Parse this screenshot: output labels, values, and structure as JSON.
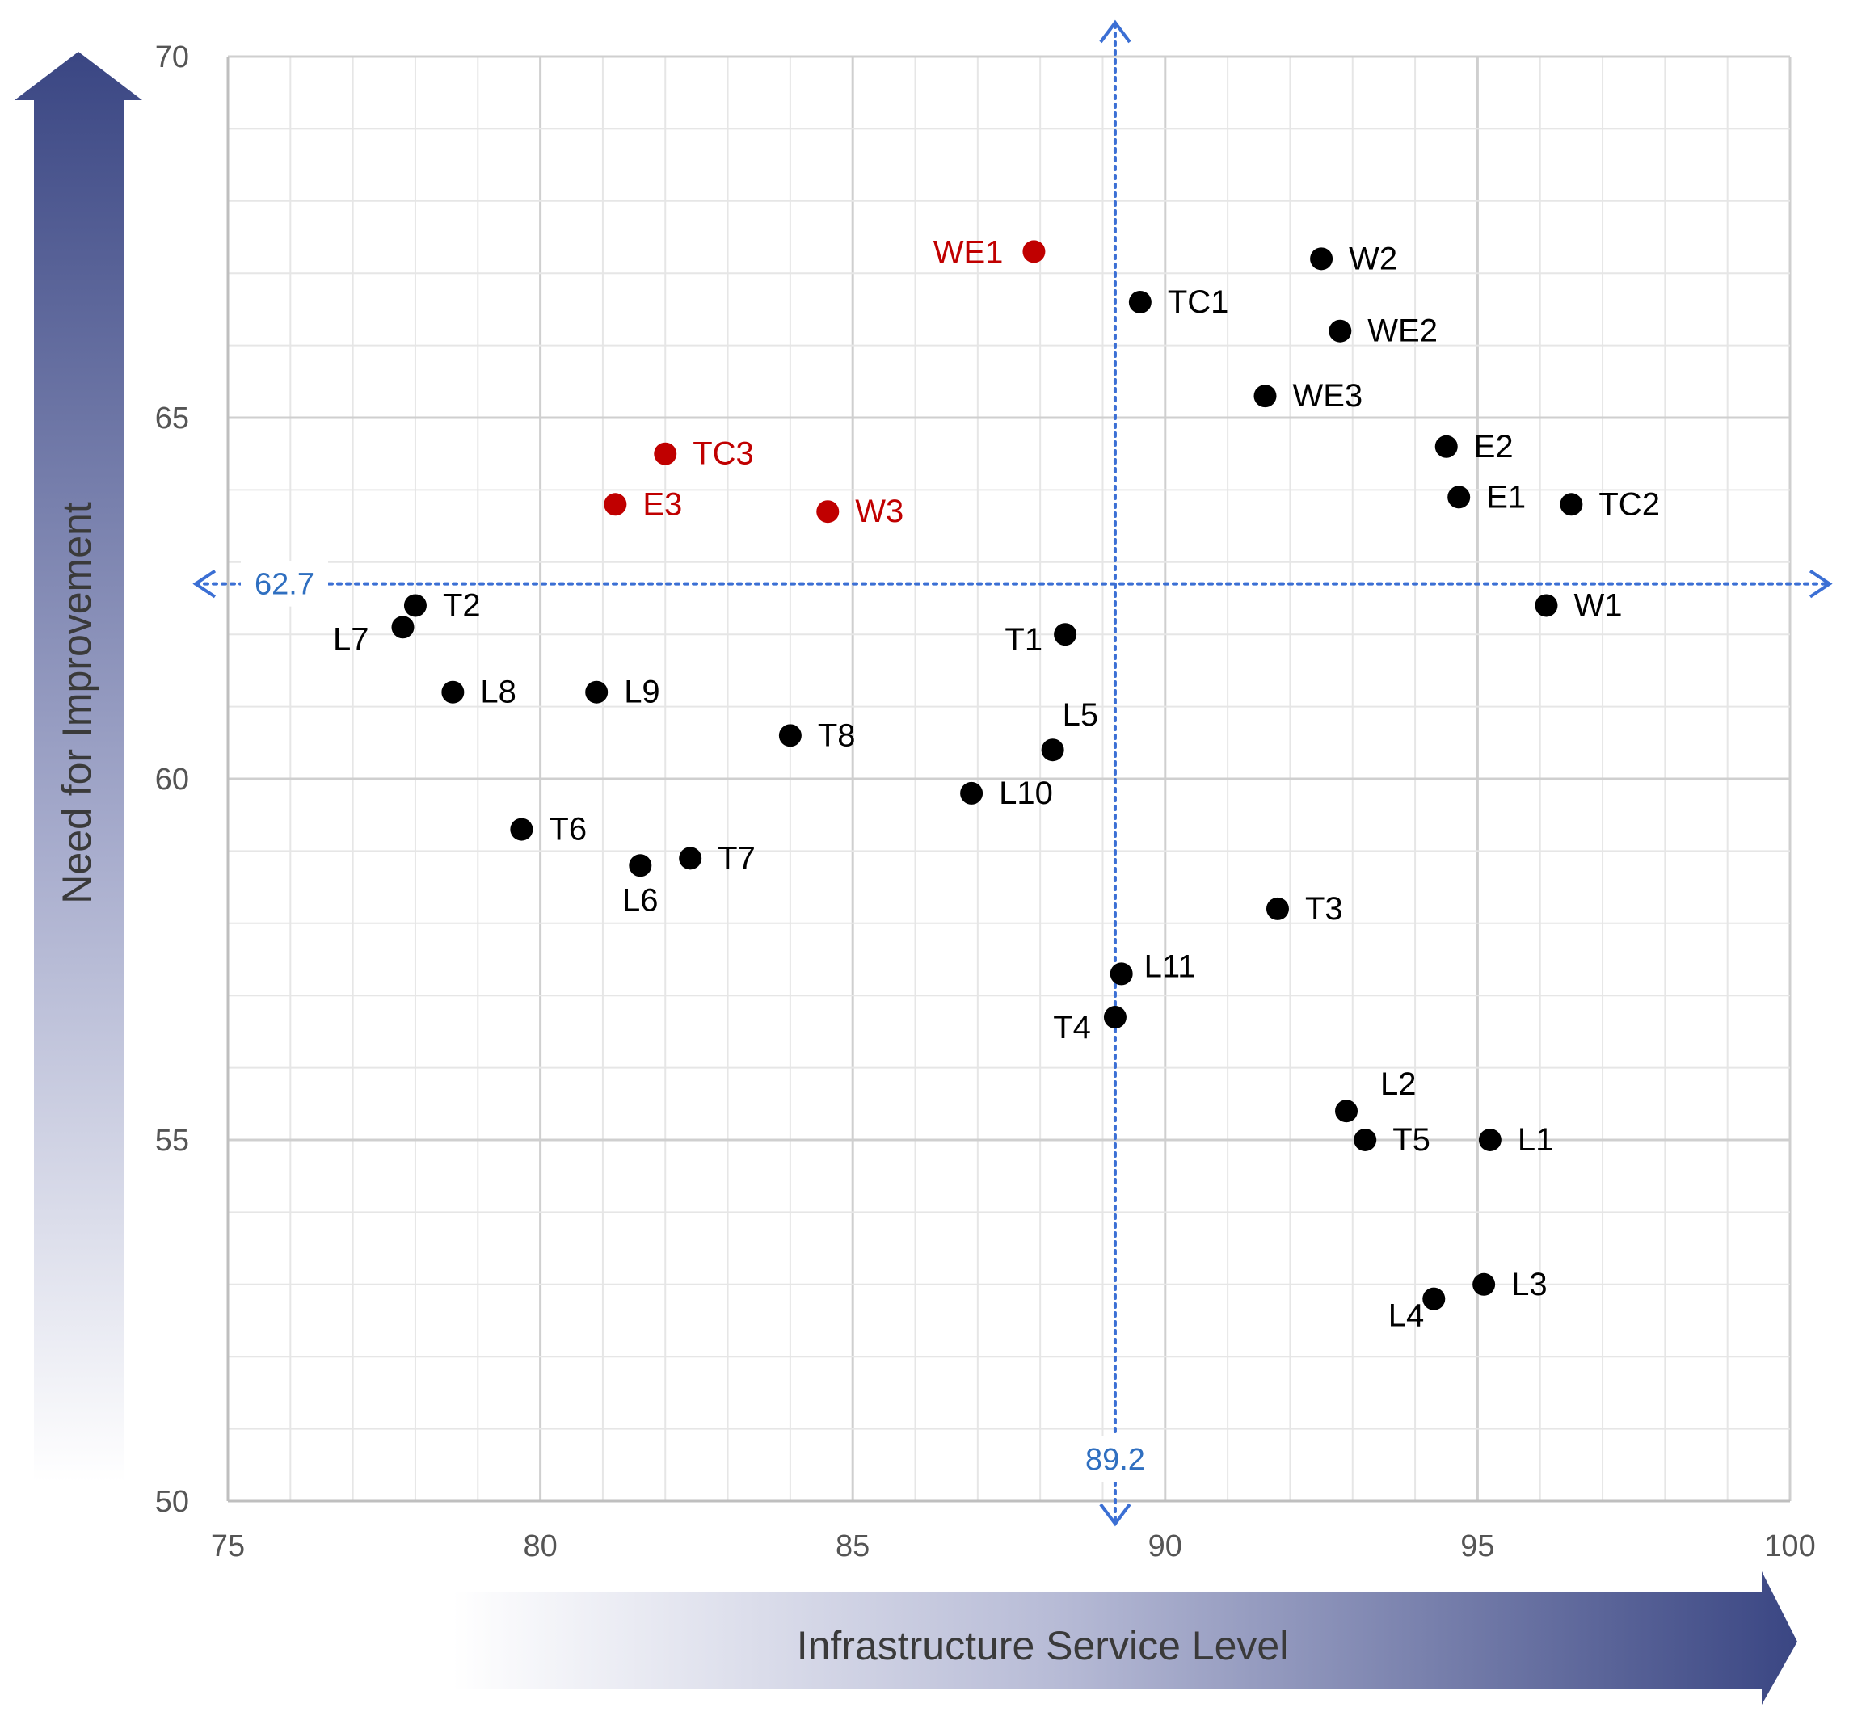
{
  "chart_data": {
    "type": "scatter",
    "title": "",
    "xlabel": "Infrastructure Service Level",
    "ylabel": "Need for  Improvement",
    "xlim": [
      75,
      100
    ],
    "ylim": [
      50,
      70
    ],
    "xticks": [
      "75",
      "80",
      "85",
      "90",
      "95",
      "100"
    ],
    "yticks": [
      "50",
      "55",
      "60",
      "65",
      "70"
    ],
    "grid": true,
    "reference_lines": {
      "x_mean": 89.2,
      "x_mean_label": "89.2",
      "y_mean": 62.7,
      "y_mean_label": "62.7"
    },
    "colors": {
      "normal": "#000000",
      "highlight": "#c00000",
      "reference": "#3b6fd4",
      "reference_label": "#2f6fc0",
      "arrow_dark": "#3a4683",
      "grid": "#d9d9d9",
      "axis": "#bfbfbf"
    },
    "points": [
      {
        "label": "WE1",
        "x": 87.9,
        "y": 67.3,
        "highlight": true
      },
      {
        "label": "TC1",
        "x": 89.6,
        "y": 66.6,
        "highlight": false
      },
      {
        "label": "W2",
        "x": 92.5,
        "y": 67.2,
        "highlight": false
      },
      {
        "label": "WE2",
        "x": 92.8,
        "y": 66.2,
        "highlight": false
      },
      {
        "label": "WE3",
        "x": 91.6,
        "y": 65.3,
        "highlight": false
      },
      {
        "label": "E2",
        "x": 94.5,
        "y": 64.6,
        "highlight": false
      },
      {
        "label": "E1",
        "x": 94.7,
        "y": 63.9,
        "highlight": false
      },
      {
        "label": "TC2",
        "x": 96.5,
        "y": 63.8,
        "highlight": false
      },
      {
        "label": "W1",
        "x": 96.1,
        "y": 62.4,
        "highlight": false
      },
      {
        "label": "TC3",
        "x": 82.0,
        "y": 64.5,
        "highlight": true
      },
      {
        "label": "E3",
        "x": 81.2,
        "y": 63.8,
        "highlight": true
      },
      {
        "label": "W3",
        "x": 84.6,
        "y": 63.7,
        "highlight": true
      },
      {
        "label": "T2",
        "x": 78.0,
        "y": 62.4,
        "highlight": false
      },
      {
        "label": "L7",
        "x": 77.8,
        "y": 62.1,
        "highlight": false
      },
      {
        "label": "T1",
        "x": 88.4,
        "y": 62.0,
        "highlight": false
      },
      {
        "label": "L8",
        "x": 78.6,
        "y": 61.2,
        "highlight": false
      },
      {
        "label": "L9",
        "x": 80.9,
        "y": 61.2,
        "highlight": false
      },
      {
        "label": "T8",
        "x": 84.0,
        "y": 60.6,
        "highlight": false
      },
      {
        "label": "L5",
        "x": 88.2,
        "y": 60.4,
        "highlight": false
      },
      {
        "label": "L10",
        "x": 86.9,
        "y": 59.8,
        "highlight": false
      },
      {
        "label": "T6",
        "x": 79.7,
        "y": 59.3,
        "highlight": false
      },
      {
        "label": "T7",
        "x": 82.4,
        "y": 58.9,
        "highlight": false
      },
      {
        "label": "L6",
        "x": 81.6,
        "y": 58.8,
        "highlight": false
      },
      {
        "label": "T3",
        "x": 91.8,
        "y": 58.2,
        "highlight": false
      },
      {
        "label": "L11",
        "x": 89.3,
        "y": 57.3,
        "highlight": false
      },
      {
        "label": "T4",
        "x": 89.2,
        "y": 56.7,
        "highlight": false
      },
      {
        "label": "L2",
        "x": 92.9,
        "y": 55.4,
        "highlight": false
      },
      {
        "label": "T5",
        "x": 93.2,
        "y": 55.0,
        "highlight": false
      },
      {
        "label": "L1",
        "x": 95.2,
        "y": 55.0,
        "highlight": false
      },
      {
        "label": "L3",
        "x": 95.1,
        "y": 53.0,
        "highlight": false
      },
      {
        "label": "L4",
        "x": 94.3,
        "y": 52.8,
        "highlight": false
      }
    ]
  }
}
